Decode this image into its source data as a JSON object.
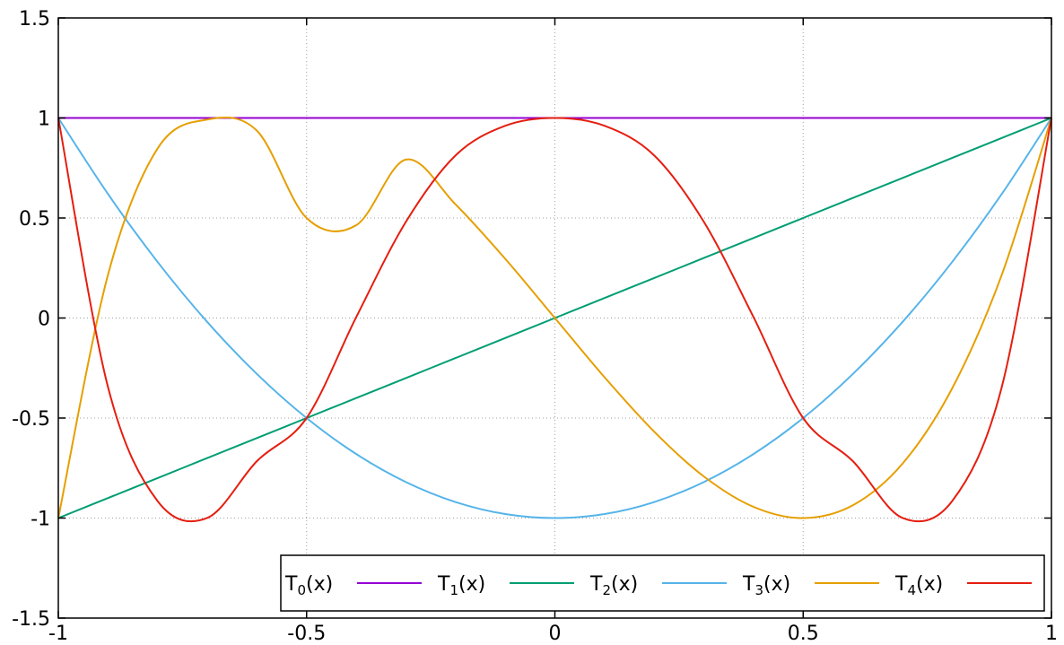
{
  "chart_data": {
    "type": "line",
    "title": "",
    "xlabel": "",
    "ylabel": "",
    "xlim": [
      -1,
      1
    ],
    "ylim": [
      -1.5,
      1.5
    ],
    "grid": true,
    "legend_position": "bottom-right",
    "x_ticks": [
      "-1",
      "-0.5",
      "0",
      "0.5",
      "1"
    ],
    "y_ticks": [
      "1.5",
      "1",
      "0.5",
      "0",
      "-0.5",
      "-1",
      "-1.5"
    ],
    "sample_x": [
      -1,
      -0.9,
      -0.8,
      -0.7,
      -0.6,
      -0.5,
      -0.4,
      -0.3,
      -0.2,
      -0.1,
      0,
      0.1,
      0.2,
      0.3,
      0.4,
      0.5,
      0.6,
      0.7,
      0.8,
      0.9,
      1
    ],
    "series": [
      {
        "name": "T",
        "sub": "0",
        "suffix": "(x)",
        "color": "#9400d3",
        "values": [
          1,
          1,
          1,
          1,
          1,
          1,
          1,
          1,
          1,
          1,
          1,
          1,
          1,
          1,
          1,
          1,
          1,
          1,
          1,
          1,
          1
        ]
      },
      {
        "name": "T",
        "sub": "1",
        "suffix": "(x)",
        "color": "#009e73",
        "values": [
          -1,
          -0.9,
          -0.8,
          -0.7,
          -0.6,
          -0.5,
          -0.4,
          -0.3,
          -0.2,
          -0.1,
          0,
          0.1,
          0.2,
          0.3,
          0.4,
          0.5,
          0.6,
          0.7,
          0.8,
          0.9,
          1
        ]
      },
      {
        "name": "T",
        "sub": "2",
        "suffix": "(x)",
        "color": "#56b4e9",
        "values": [
          1,
          0.62,
          0.28,
          -0.02,
          -0.28,
          -0.5,
          -0.68,
          -0.82,
          -0.92,
          -0.98,
          -1,
          -0.98,
          -0.92,
          -0.82,
          -0.68,
          -0.5,
          -0.28,
          -0.02,
          0.28,
          0.62,
          1
        ]
      },
      {
        "name": "T",
        "sub": "3",
        "suffix": "(x)",
        "color": "#e69f00",
        "values": [
          -1,
          0.216,
          0.848,
          0.992,
          0.936,
          0.5,
          0.464,
          0.792,
          0.568,
          0.296,
          0,
          -0.296,
          -0.568,
          -0.792,
          -0.944,
          -1,
          -0.936,
          -0.728,
          -0.352,
          0.216,
          1
        ]
      },
      {
        "name": "T",
        "sub": "4",
        "suffix": "(x)",
        "color": "#e51e10",
        "values": [
          1,
          -0.3448,
          -0.9152,
          -0.9992,
          -0.7152,
          -0.5,
          0.0048,
          0.4808,
          0.8128,
          0.9608,
          1,
          0.9608,
          0.8128,
          0.4808,
          0.0048,
          -0.5,
          -0.7152,
          -0.9992,
          -0.9152,
          -0.3448,
          1
        ]
      }
    ]
  }
}
